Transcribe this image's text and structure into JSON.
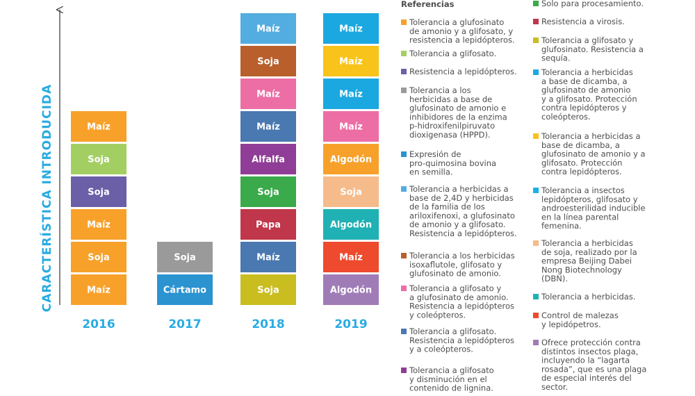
{
  "axis_label": "CARACTERÍSTICA INTRODUCIDA",
  "columns": [
    {
      "year": "2016",
      "blocks": [
        {
          "label": "Maíz",
          "color": "#f7a12b"
        },
        {
          "label": "Soja",
          "color": "#f7a12b"
        },
        {
          "label": "Maíz",
          "color": "#f7a12b"
        },
        {
          "label": "Soja",
          "color": "#6b5fa8"
        },
        {
          "label": "Soja",
          "color": "#a3cf62"
        },
        {
          "label": "Maíz",
          "color": "#f7a12b"
        }
      ]
    },
    {
      "year": "2017",
      "blocks": [
        {
          "label": "Cártamo",
          "color": "#2a93d0"
        },
        {
          "label": "Soja",
          "color": "#9a9a9a"
        }
      ]
    },
    {
      "year": "2018",
      "blocks": [
        {
          "label": "Soja",
          "color": "#c9bd1f"
        },
        {
          "label": "Maíz",
          "color": "#4a78b0"
        },
        {
          "label": "Papa",
          "color": "#c0364a"
        },
        {
          "label": "Soja",
          "color": "#3aaa4a"
        },
        {
          "label": "Alfalfa",
          "color": "#8f3d96"
        },
        {
          "label": "Maíz",
          "color": "#4a78b0"
        },
        {
          "label": "Maíz",
          "color": "#ec6ea5"
        },
        {
          "label": "Soja",
          "color": "#b85f2c"
        },
        {
          "label": "Maíz",
          "color": "#54ade0"
        }
      ]
    },
    {
      "year": "2019",
      "blocks": [
        {
          "label": "Algodón",
          "color": "#a07cb7"
        },
        {
          "label": "Maíz",
          "color": "#ee4a2e"
        },
        {
          "label": "Algodón",
          "color": "#1fb1b3"
        },
        {
          "label": "Soja",
          "color": "#f6bb8a"
        },
        {
          "label": "Algodón",
          "color": "#f7a12b"
        },
        {
          "label": "Maíz",
          "color": "#ec6ea5"
        },
        {
          "label": "Maíz",
          "color": "#1ba8e0"
        },
        {
          "label": "Maíz",
          "color": "#f8c31a"
        },
        {
          "label": "Maíz",
          "color": "#1ba8e0"
        }
      ]
    }
  ],
  "legend": {
    "title": "Referencias",
    "items": [
      {
        "color": "#f7a12b",
        "lines": [
          "Tolerancia a glufosinato",
          "de amonio y a glifosato, y",
          "resistencia a lepidópteros."
        ]
      },
      {
        "color": "#a3cf62",
        "lines": [
          "Tolerancia a glifosato."
        ]
      },
      {
        "color": "#6b5fa8",
        "lines": [
          "Resistencia a lepidópteros."
        ]
      },
      {
        "color": "#9a9a9a",
        "lines": [
          "Tolerancia a los",
          "herbicidas a base de",
          "glufosinato de amonio e",
          "inhibidores de la enzima",
          "p-hidroxifenilpiruvato",
          "dioxigenasa (HPPD)."
        ]
      },
      {
        "color": "#2a93d0",
        "lines": [
          "Expresión de",
          "pro-quimosina bovina",
          "en semilla."
        ]
      },
      {
        "color": "#54ade0",
        "lines": [
          "Tolerancia a herbicidas a",
          "base de 2,4D y herbicidas",
          "de la familia de los",
          "ariloxifenoxi, a glufosinato",
          "de amonio y a glifosato.",
          "Resistencia a lepidópteros."
        ]
      },
      {
        "color": "#b85f2c",
        "lines": [
          "Tolerancia a los herbicidas",
          "isoxaflutole, glifosato y",
          "glufosinato de amonio."
        ]
      },
      {
        "color": "#ec6ea5",
        "lines": [
          "Tolerancia a glifosato y",
          "a glufosinato de amonio.",
          "Resistencia a lepidópteros",
          "y coleópteros."
        ]
      },
      {
        "color": "#4a78b0",
        "lines": [
          "Tolerancia a glifosato.",
          "Resistencia a lepidópteros",
          "y a coleópteros."
        ]
      },
      {
        "color": "#8f3d96",
        "lines": [
          "Tolerancia a glifosato",
          "y disminución en el",
          "contenido de lignina."
        ]
      },
      {
        "color": "#3aaa4a",
        "lines": [
          "Solo para procesamiento."
        ]
      },
      {
        "color": "#c0364a",
        "lines": [
          "Resistencia a virosis."
        ]
      },
      {
        "color": "#c9bd1f",
        "lines": [
          "Tolerancia a glifosato y",
          "glufosinato. Resistencia a",
          "sequía."
        ]
      },
      {
        "color": "#1ba8e0",
        "lines": [
          "Tolerancia a herbicidas",
          "a base de dicamba, a",
          "glufosinato de amonio",
          "y a glifosato. Protección",
          "contra lepidópteros y",
          "coleópteros."
        ]
      },
      {
        "color": "#f8c31a",
        "lines": [
          "Tolerancia a herbicidas a",
          "base de dicamba, a",
          "glufosinato de amonio y a",
          "glifosato. Protección",
          "contra lepidópteros."
        ]
      },
      {
        "color": "#1bb2e3",
        "lines": [
          "Tolerancia a insectos",
          "lepidópteros, glifosato y",
          "androesterilidad inducible",
          "en la línea parental",
          "femenina."
        ]
      },
      {
        "color": "#f6bb8a",
        "lines": [
          "Tolerancia a herbicidas",
          "de soja, realizado por la",
          "empresa Beijing Dabei",
          "Nong Biotechnology",
          "(DBN)."
        ]
      },
      {
        "color": "#1fb1b3",
        "lines": [
          "Tolerancia a herbicidas."
        ]
      },
      {
        "color": "#ee4a2e",
        "lines": [
          "Control de malezas",
          "y lepidópetros."
        ]
      },
      {
        "color": "#a07cb7",
        "lines": [
          "Ofrece protección contra",
          "distintos insectos plaga,",
          "incluyendo la “lagarta",
          "rosada”, que es una plaga",
          "de especial interés del",
          "sector."
        ]
      }
    ]
  }
}
